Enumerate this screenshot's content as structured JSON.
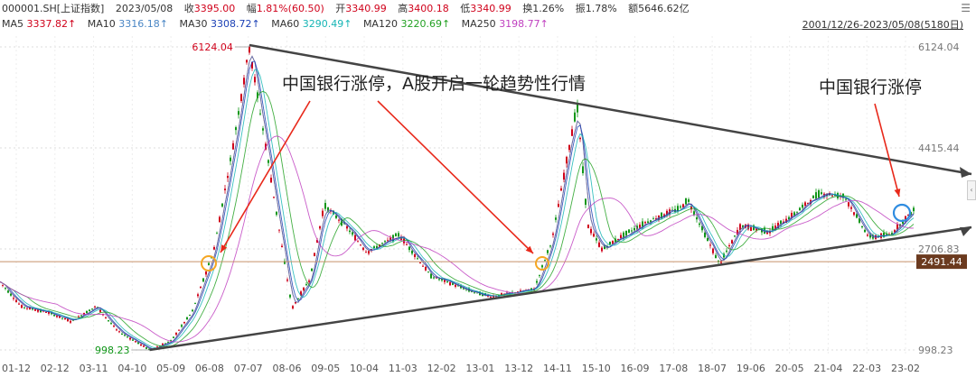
{
  "quote": {
    "symbol": "000001.SH[上证指数]",
    "date": "2023/05/08",
    "close_label": "收",
    "close": "3395.00",
    "change_label": "幅",
    "change": "1.81%(60.50)",
    "open_label": "开",
    "open": "3340.99",
    "high_label": "高",
    "high": "3400.18",
    "low_label": "低",
    "low": "3340.99",
    "turnover_label": "换",
    "turnover": "1.26%",
    "amplitude_label": "振",
    "amplitude": "1.78%",
    "amount_label": "额",
    "amount": "5646.62亿"
  },
  "ma": [
    {
      "label": "MA5",
      "value": "3337.82↑",
      "color": "#d0021b"
    },
    {
      "label": "MA10",
      "value": "3316.18↑",
      "color": "#4a86c5"
    },
    {
      "label": "MA30",
      "value": "3308.72↑",
      "color": "#1a3fb5"
    },
    {
      "label": "MA60",
      "value": "3290.49↑",
      "color": "#16b5b5"
    },
    {
      "label": "MA120",
      "value": "3220.69↑",
      "color": "#23a123"
    },
    {
      "label": "MA250",
      "value": "3198.77↑",
      "color": "#c040c0"
    }
  ],
  "date_range": "2001/12/26-2023/05/08(5180日)",
  "icons": {
    "menu": "menu-icon",
    "collapse": "collapse-handle-icon"
  },
  "colors": {
    "up": "#d0021b",
    "down": "#109618",
    "price_tag": "#6b3a1f",
    "highlight": "#f5a623",
    "circle_blue": "#2f8ce0",
    "arrow": "#e8291b"
  },
  "chart_data": {
    "type": "candlestick",
    "title": "",
    "x_ticks": [
      "01-12",
      "02-12",
      "03-11",
      "04-10",
      "05-09",
      "06-08",
      "07-07",
      "08-06",
      "09-05",
      "10-04",
      "11-03",
      "12-02",
      "13-01",
      "13-12",
      "14-11",
      "15-10",
      "16-09",
      "17-08",
      "18-07",
      "19-06",
      "20-05",
      "21-04",
      "22-03",
      "23-02"
    ],
    "y_ticks": [
      "6124.04",
      "4415.44",
      "2706.83",
      "998.23"
    ],
    "ylim": [
      998.23,
      6124.04
    ],
    "current_price_tag": "2491.44",
    "current_price_value": 2491.44,
    "high_label": "6124.04",
    "low_label": "998.23",
    "high_point": {
      "date": "2007-10",
      "value": 6124.04
    },
    "low_point": {
      "date": "2005-06",
      "value": 998.23
    },
    "annotations": [
      {
        "text": "中国银行涨停，A股开启一轮趋势性行情"
      },
      {
        "text": "中国银行涨停"
      }
    ],
    "series": [
      {
        "name": "price",
        "x": [
          "2001-12",
          "2002-06",
          "2003-01",
          "2003-08",
          "2004-03",
          "2004-09",
          "2005-06",
          "2005-12",
          "2006-06",
          "2006-12",
          "2007-05",
          "2007-10",
          "2008-03",
          "2008-07",
          "2008-10",
          "2009-03",
          "2009-07",
          "2010-01",
          "2010-07",
          "2011-04",
          "2012-01",
          "2012-12",
          "2013-06",
          "2014-06",
          "2014-11",
          "2015-06",
          "2015-09",
          "2016-01",
          "2016-06",
          "2017-01",
          "2017-11",
          "2018-01",
          "2018-10",
          "2019-04",
          "2019-12",
          "2020-07",
          "2021-02",
          "2021-09",
          "2022-04",
          "2022-10",
          "2023-05"
        ],
        "values": [
          2150,
          1730,
          1640,
          1480,
          1740,
          1320,
          998.23,
          1150,
          1650,
          2680,
          4300,
          6124.04,
          4300,
          2800,
          1700,
          2200,
          3450,
          3100,
          2650,
          2950,
          2250,
          2000,
          1900,
          2030,
          2860,
          5160,
          3100,
          2700,
          2900,
          3150,
          3400,
          3550,
          2450,
          3100,
          3000,
          3300,
          3650,
          3600,
          2900,
          2950,
          3395
        ]
      }
    ]
  }
}
